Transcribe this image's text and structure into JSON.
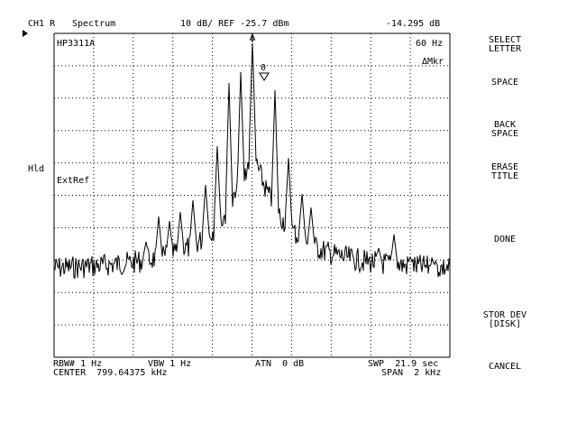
{
  "header": {
    "channel": "CH1 R",
    "mode": "Spectrum",
    "scale_ref": "10 dB/ REF -25.7 dBm",
    "marker_value": "-14.295 dB"
  },
  "screen": {
    "title": "HP3311A",
    "marker_freq": "60 Hz",
    "marker_mode": "ΔMkr",
    "hold": "Hld",
    "extref": "ExtRef",
    "marker_label": "0"
  },
  "footer": {
    "rbw": "RBW# 1 Hz",
    "vbw": "VBW 1 Hz",
    "atn": "ATN  0 dB",
    "swp": "SWP  21.9 sec",
    "center": "CENTER  799.64375 kHz",
    "span": "SPAN  2 kHz"
  },
  "softkeys": [
    "SELECT\nLETTER",
    "SPACE",
    "BACK\nSPACE",
    "ERASE\nTITLE",
    "DONE",
    "STOR DEV\n[DISK]",
    "CANCEL"
  ],
  "colors": {
    "trace": "#000000",
    "grid": "#000000",
    "background": "#ffffff"
  }
}
